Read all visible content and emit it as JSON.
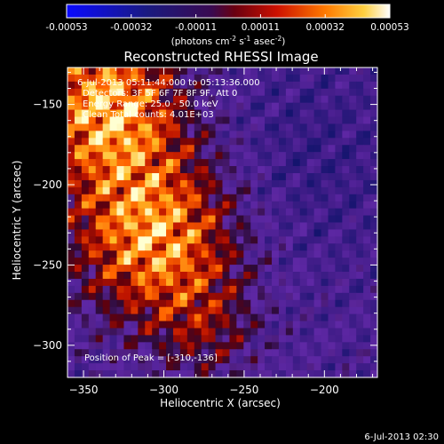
{
  "chart_data": {
    "type": "heatmap",
    "title": "Reconstructed RHESSI Image",
    "xlabel": "Heliocentric X (arcsec)",
    "ylabel": "Heliocentric Y (arcsec)",
    "xlim": [
      -360,
      -167
    ],
    "ylim": [
      -320,
      -127
    ],
    "x_ticks": [
      -350,
      -300,
      -250,
      -200
    ],
    "y_ticks": [
      -150,
      -200,
      -250,
      -300
    ],
    "colorbar": {
      "range": [
        -0.00053,
        0.00053
      ],
      "tick_labels": [
        "-0.00053",
        "-0.00032",
        "-0.00011",
        "0.00011",
        "0.00032",
        "0.00053"
      ],
      "units_label": "(photons cm",
      "units_exp1": "-2",
      "units_mid": " s",
      "units_exp2": "-1",
      "units_tail": " asec",
      "units_exp3": "-2",
      "units_close": ")"
    },
    "annotations": {
      "time_range": "6-Jul-2013 05:11:44.000 to 05:13:36.000",
      "detectors": "Detectors: 3F 5F 6F 7F 8F 9F, Att 0",
      "energy": "Energy Range: 25.0 - 50.0 keV",
      "clean": "Clean     Total counts: 4.01E+03",
      "peak": "Position of Peak = [-310,-136]"
    },
    "peak": {
      "x": -310,
      "y": -136
    }
  },
  "footer": {
    "timestamp": "6-Jul-2013 02:30"
  }
}
